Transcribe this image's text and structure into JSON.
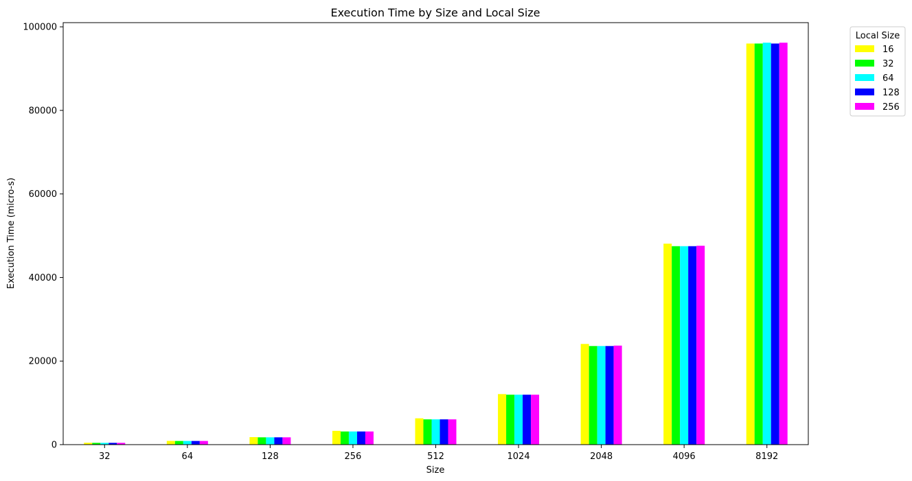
{
  "chart_data": {
    "type": "bar",
    "title": "Execution Time by Size and Local Size",
    "xlabel": "Size",
    "ylabel": "Execution Time (micro-s)",
    "categories": [
      "32",
      "64",
      "128",
      "256",
      "512",
      "1024",
      "2048",
      "4096",
      "8192"
    ],
    "ylim": [
      0,
      101000
    ],
    "yticks": [
      0,
      20000,
      40000,
      60000,
      80000,
      100000
    ],
    "grid": false,
    "legend": {
      "title": "Local Size",
      "placement": "outside-top-right"
    },
    "series": [
      {
        "name": "16",
        "color": "#ffff00",
        "values": [
          450,
          900,
          1800,
          3300,
          6300,
          12100,
          24100,
          48100,
          96000
        ]
      },
      {
        "name": "32",
        "color": "#00ff00",
        "values": [
          430,
          880,
          1750,
          3150,
          6050,
          11950,
          23600,
          47500,
          96000
        ]
      },
      {
        "name": "64",
        "color": "#00ffff",
        "values": [
          430,
          880,
          1750,
          3150,
          6050,
          11950,
          23600,
          47500,
          96200
        ]
      },
      {
        "name": "128",
        "color": "#0000ff",
        "values": [
          430,
          880,
          1750,
          3150,
          6050,
          11950,
          23600,
          47500,
          96000
        ]
      },
      {
        "name": "256",
        "color": "#ff00ff",
        "values": [
          430,
          880,
          1750,
          3150,
          6050,
          11950,
          23700,
          47600,
          96200
        ]
      }
    ]
  }
}
